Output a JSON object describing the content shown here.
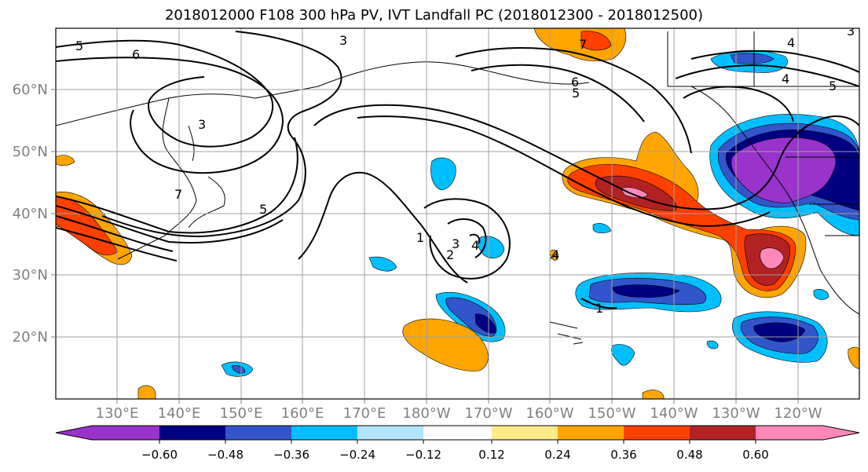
{
  "title": "2018012000 F108 300 hPa PV, IVT Landfall PC (2018012300 - 2018012500)",
  "map": {
    "lon_labels": [
      "130°E",
      "140°E",
      "150°E",
      "160°E",
      "170°E",
      "180°W",
      "170°W",
      "160°W",
      "150°W",
      "140°W",
      "130°W",
      "120°W"
    ],
    "lat_labels": [
      "60°N",
      "50°N",
      "40°N",
      "30°N",
      "20°N"
    ],
    "contour_labels": [
      "5",
      "6",
      "3",
      "3",
      "7",
      "5",
      "1",
      "3",
      "2",
      "4",
      "1",
      "4",
      "7",
      "6",
      "5",
      "4",
      "5",
      "4",
      "3"
    ]
  },
  "colorbar": {
    "tick_labels": [
      "−0.60",
      "−0.48",
      "−0.36",
      "−0.24",
      "−0.12",
      "0.12",
      "0.24",
      "0.36",
      "0.48",
      "0.60"
    ],
    "colors": [
      "#9933cc",
      "#000080",
      "#3355cc",
      "#00bfff",
      "#b3e5ff",
      "#ffffff",
      "#ffeb8a",
      "#ffa500",
      "#ff4000",
      "#b22222",
      "#ff88bb",
      "#ffaacc"
    ]
  }
}
